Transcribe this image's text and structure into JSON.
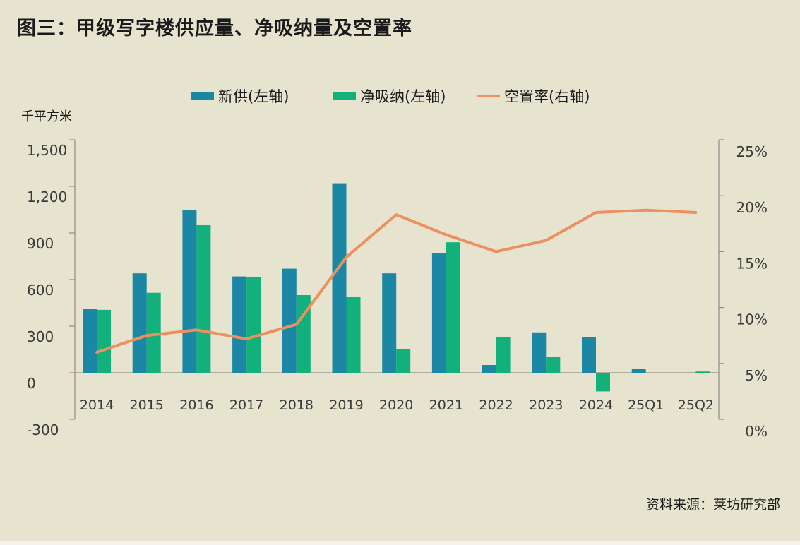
{
  "title": "图三：甲级写字楼供应量、净吸纳量及空置率",
  "source": "资料来源：莱坊研究部",
  "chart_data": {
    "type": "bar",
    "categories": [
      "2014",
      "2015",
      "2016",
      "2017",
      "2018",
      "2019",
      "2020",
      "2021",
      "2022",
      "2023",
      "2024",
      "25Q1",
      "25Q2"
    ],
    "series": [
      {
        "name": "新供(左轴)",
        "type": "bar",
        "axis": "left",
        "color": "#1b87a4",
        "values": [
          410,
          640,
          1050,
          620,
          670,
          1220,
          640,
          770,
          50,
          260,
          230,
          25,
          0
        ]
      },
      {
        "name": "净吸纳(左轴)",
        "type": "bar",
        "axis": "left",
        "color": "#12b07a",
        "values": [
          405,
          515,
          950,
          615,
          500,
          490,
          150,
          840,
          230,
          100,
          -120,
          0,
          8
        ]
      },
      {
        "name": "空置率(右轴)",
        "type": "line",
        "axis": "right",
        "color": "#ec9060",
        "values": [
          6.0,
          7.5,
          8.0,
          7.2,
          8.5,
          14.5,
          18.3,
          16.5,
          15.0,
          16.0,
          18.5,
          18.7,
          18.5
        ]
      }
    ],
    "ylabel_left": "千平方米",
    "ylim_left": [
      -300,
      1500
    ],
    "yticks_left": [
      "-300",
      "0",
      "300",
      "600",
      "900",
      "1,200",
      "1,500"
    ],
    "ylim_right": [
      0,
      25
    ],
    "yticks_right": [
      "0%",
      "5%",
      "10%",
      "15%",
      "20%",
      "25%"
    ],
    "legend_position": "top-center",
    "grid": false
  }
}
